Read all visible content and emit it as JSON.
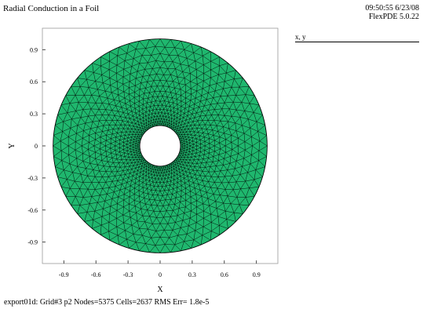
{
  "header": {
    "title": "Radial Conduction in a Foil",
    "time_date": "09:50:55 6/23/08",
    "version": "FlexPDE 5.0.22"
  },
  "legend": {
    "label": "x, y"
  },
  "footer": {
    "text": "export01d:  Grid#3  p2  Nodes=5375 Cells=2637 RMS Err= 1.8e-5"
  },
  "plot": {
    "xlabel": "X",
    "ylabel": "Y",
    "x_ticks": [
      "-0.9",
      "-0.6",
      "-0.3",
      "0",
      "0.3",
      "0.6",
      "0.9"
    ],
    "y_ticks": [
      "0.9",
      "0.6",
      "0.3",
      "0",
      "-0.3",
      "-0.6",
      "-0.9"
    ],
    "x_tick_values": [
      -0.9,
      -0.6,
      -0.3,
      0,
      0.3,
      0.6,
      0.9
    ],
    "y_tick_values": [
      0.9,
      0.6,
      0.3,
      0,
      -0.3,
      -0.6,
      -0.9
    ],
    "x_range": [
      -1.1,
      1.1
    ],
    "y_range": [
      -1.1,
      1.1
    ],
    "outer_radius": 1.0,
    "inner_radius": 0.19,
    "center": [
      0,
      0
    ],
    "fill_color": "#1fb76e",
    "mesh_color": "#000000"
  }
}
